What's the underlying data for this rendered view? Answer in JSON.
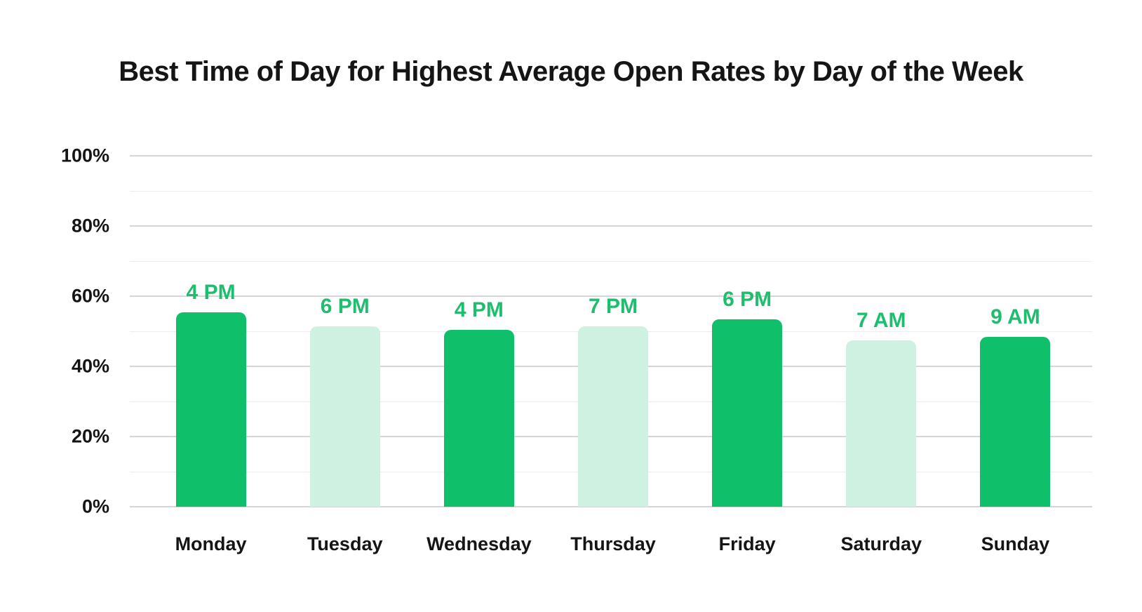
{
  "chart_data": {
    "type": "bar",
    "title": "Best Time of Day for Highest Average Open Rates by Day of the Week",
    "categories": [
      "Monday",
      "Tuesday",
      "Wednesday",
      "Thursday",
      "Friday",
      "Saturday",
      "Sunday"
    ],
    "values": [
      55.5,
      51.5,
      50.5,
      51.5,
      53.5,
      47.5,
      48.5
    ],
    "bar_labels": [
      "4 PM",
      "6 PM",
      "4 PM",
      "7 PM",
      "6 PM",
      "7 AM",
      "9 AM"
    ],
    "bar_styles": [
      "dark",
      "light",
      "dark",
      "light",
      "dark",
      "light",
      "dark"
    ],
    "palette": {
      "dark": "#10BF6A",
      "light": "#CFF1E1",
      "label": "#1EBE6E",
      "text": "#151515",
      "grid_major": "#D5D5D5",
      "grid_minor": "#EDEDED"
    },
    "xlabel": "",
    "ylabel": "",
    "ylim": [
      0,
      100
    ],
    "yticks": [
      0,
      20,
      40,
      60,
      80,
      100
    ],
    "ytick_labels": [
      "0%",
      "20%",
      "40%",
      "60%",
      "80%",
      "100%"
    ],
    "minor_step": 10,
    "grid": "horizontal",
    "legend": "none"
  }
}
